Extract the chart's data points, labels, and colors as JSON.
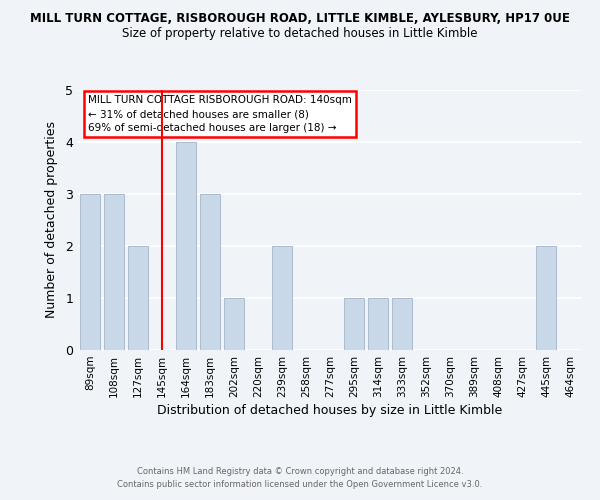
{
  "title_line1": "MILL TURN COTTAGE, RISBOROUGH ROAD, LITTLE KIMBLE, AYLESBURY, HP17 0UE",
  "title_line2": "Size of property relative to detached houses in Little Kimble",
  "xlabel": "Distribution of detached houses by size in Little Kimble",
  "ylabel": "Number of detached properties",
  "bin_labels": [
    "89sqm",
    "108sqm",
    "127sqm",
    "145sqm",
    "164sqm",
    "183sqm",
    "202sqm",
    "220sqm",
    "239sqm",
    "258sqm",
    "277sqm",
    "295sqm",
    "314sqm",
    "333sqm",
    "352sqm",
    "370sqm",
    "389sqm",
    "408sqm",
    "427sqm",
    "445sqm",
    "464sqm"
  ],
  "bar_values": [
    3,
    3,
    2,
    0,
    4,
    3,
    1,
    0,
    2,
    0,
    0,
    1,
    1,
    1,
    0,
    0,
    0,
    0,
    0,
    2,
    0
  ],
  "bar_color": "#c8d8e8",
  "bar_edgecolor": "#aabbcc",
  "reference_line_x_label": "145sqm",
  "reference_line_color": "red",
  "ylim": [
    0,
    5
  ],
  "yticks": [
    0,
    1,
    2,
    3,
    4,
    5
  ],
  "annotation_box_title": "MILL TURN COTTAGE RISBOROUGH ROAD: 140sqm",
  "annotation_line1": "← 31% of detached houses are smaller (8)",
  "annotation_line2": "69% of semi-detached houses are larger (18) →",
  "footer_line1": "Contains HM Land Registry data © Crown copyright and database right 2024.",
  "footer_line2": "Contains public sector information licensed under the Open Government Licence v3.0.",
  "background_color": "#f0f4f8"
}
